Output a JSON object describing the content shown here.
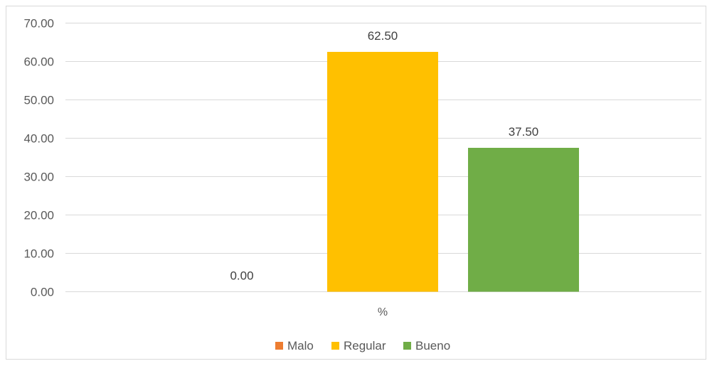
{
  "chart_data": {
    "type": "bar",
    "categories": [
      "%"
    ],
    "series": [
      {
        "name": "Malo",
        "values": [
          0.0
        ],
        "label": "0.00",
        "color": "#ED7D31"
      },
      {
        "name": "Regular",
        "values": [
          62.5
        ],
        "label": "62.50",
        "color": "#FFC000"
      },
      {
        "name": "Bueno",
        "values": [
          37.5
        ],
        "label": "37.50",
        "color": "#70AD47"
      }
    ],
    "ylim": [
      0,
      70
    ],
    "yticks": [
      "0.00",
      "10.00",
      "20.00",
      "30.00",
      "40.00",
      "50.00",
      "60.00",
      "70.00"
    ],
    "gridlines": true,
    "gridline_color": "#d9d9d9",
    "legend_position": "bottom",
    "title": "",
    "xlabel": "",
    "ylabel": ""
  }
}
